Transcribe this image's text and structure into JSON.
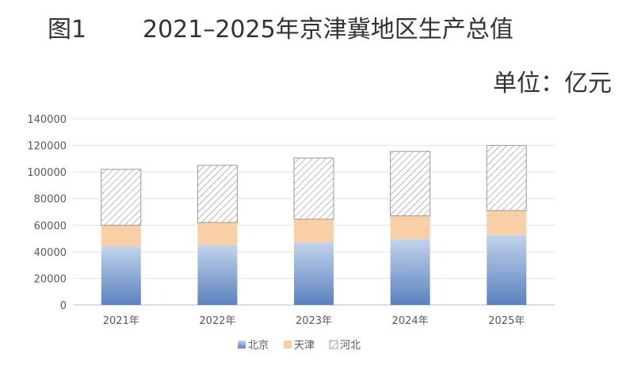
{
  "figure_label": "图1",
  "unit_text": "单位：亿元",
  "chart_data": {
    "type": "bar",
    "stacked": true,
    "title": "2021–2025年京津冀地区生产总值",
    "categories": [
      "2021年",
      "2022年",
      "2023年",
      "2024年",
      "2025年"
    ],
    "series": [
      {
        "name": "北京",
        "values": [
          44000,
          45000,
          47000,
          49500,
          52500
        ],
        "color": "#6f93c9",
        "fill": "gradient-blue"
      },
      {
        "name": "天津",
        "values": [
          16000,
          17000,
          17500,
          17500,
          18500
        ],
        "color": "#f9cfa6",
        "fill": "solid"
      },
      {
        "name": "河北",
        "values": [
          42000,
          43000,
          46000,
          48500,
          49000
        ],
        "color": "#9a9a9a",
        "fill": "hatch"
      }
    ],
    "ylim": [
      0,
      140000
    ],
    "yticks": [
      "0",
      "20000",
      "40000",
      "60000",
      "80000",
      "100000",
      "120000",
      "140000"
    ],
    "grid": true,
    "legend": "bottom"
  }
}
